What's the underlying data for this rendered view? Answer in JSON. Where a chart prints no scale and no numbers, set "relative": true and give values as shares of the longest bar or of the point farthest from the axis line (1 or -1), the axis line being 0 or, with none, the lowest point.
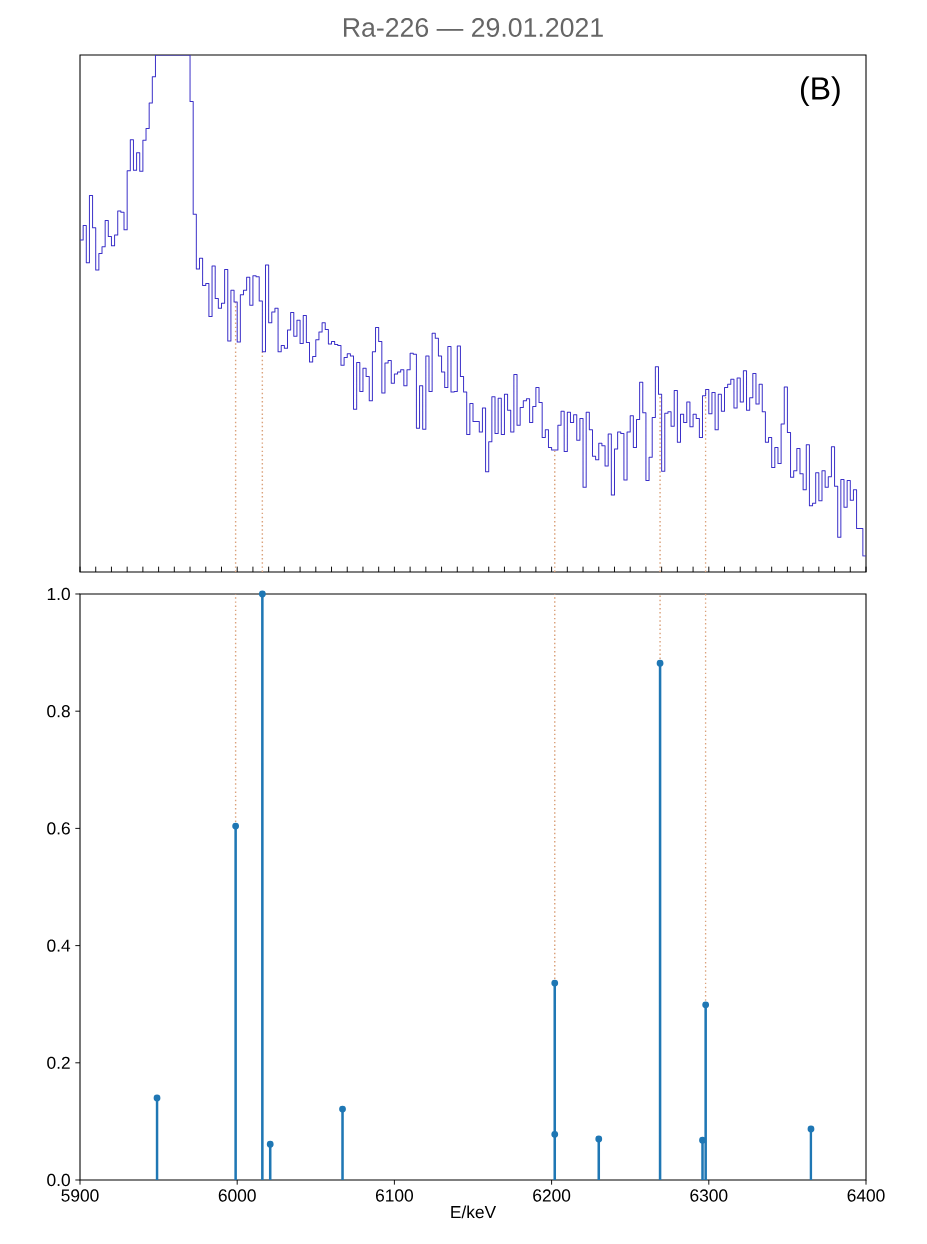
{
  "chart_data": [
    {
      "type": "step",
      "title": "Ra-226 — 29.01.2021",
      "annotations": [
        "(B)"
      ],
      "relative": true,
      "tick_labels": false,
      "color": "#3a2fc8",
      "xlim": [
        5900,
        6400
      ],
      "xticks": [
        5900,
        5910,
        5920,
        5930,
        5940,
        5950,
        5960,
        5970,
        5980,
        5990,
        6000,
        6010,
        6020,
        6030,
        6040,
        6050,
        6060,
        6070,
        6080,
        6090,
        6100,
        6110,
        6120,
        6130,
        6140,
        6150,
        6160,
        6170,
        6180,
        6190,
        6200,
        6210,
        6220,
        6230,
        6240,
        6250,
        6260,
        6270,
        6280,
        6290,
        6300,
        6310,
        6320,
        6330,
        6340,
        6350,
        6360,
        6370,
        6380,
        6390,
        6400
      ],
      "x": [
        5900,
        5902,
        5904,
        5906,
        5908,
        5910,
        5912,
        5914,
        5916,
        5918,
        5920,
        5922,
        5924,
        5926,
        5928,
        5930,
        5932,
        5934,
        5936,
        5938,
        5940,
        5942,
        5944,
        5946,
        5948,
        5970,
        5972,
        5974,
        5976,
        5978,
        5980,
        5982,
        5984,
        5986,
        5988,
        5990,
        5992,
        5994,
        5996,
        5998,
        6000,
        6002,
        6004,
        6006,
        6008,
        6010,
        6012,
        6014,
        6016,
        6018,
        6020,
        6022,
        6024,
        6026,
        6028,
        6030,
        6032,
        6034,
        6036,
        6038,
        6040,
        6042,
        6044,
        6046,
        6048,
        6050,
        6052,
        6054,
        6056,
        6058,
        6060,
        6062,
        6064,
        6066,
        6068,
        6070,
        6072,
        6074,
        6076,
        6078,
        6080,
        6082,
        6084,
        6086,
        6088,
        6090,
        6092,
        6094,
        6096,
        6098,
        6100,
        6102,
        6104,
        6106,
        6108,
        6110,
        6112,
        6114,
        6116,
        6118,
        6120,
        6122,
        6124,
        6126,
        6128,
        6130,
        6132,
        6134,
        6136,
        6138,
        6140,
        6142,
        6144,
        6146,
        6148,
        6150,
        6154,
        6156,
        6158,
        6160,
        6162,
        6164,
        6166,
        6168,
        6170,
        6172,
        6174,
        6176,
        6178,
        6180,
        6182,
        6184,
        6186,
        6188,
        6190,
        6192,
        6194,
        6196,
        6198,
        6200,
        6204,
        6206,
        6208,
        6210,
        6212,
        6214,
        6216,
        6218,
        6220,
        6222,
        6224,
        6226,
        6228,
        6230,
        6232,
        6234,
        6236,
        6238,
        6240,
        6242,
        6244,
        6246,
        6248,
        6250,
        6252,
        6254,
        6256,
        6258,
        6260,
        6262,
        6264,
        6266,
        6268,
        6270,
        6272,
        6274,
        6276,
        6278,
        6280,
        6282,
        6284,
        6286,
        6288,
        6290,
        6292,
        6294,
        6296,
        6298,
        6300,
        6302,
        6304,
        6306,
        6308,
        6310,
        6312,
        6314,
        6316,
        6318,
        6320,
        6322,
        6324,
        6326,
        6328,
        6330,
        6332,
        6334,
        6336,
        6338,
        6340,
        6342,
        6344,
        6346,
        6348,
        6350,
        6352,
        6354,
        6356,
        6358,
        6360,
        6362,
        6364,
        6366,
        6368,
        6370,
        6372,
        6374,
        6376,
        6378,
        6380,
        6382,
        6384,
        6386,
        6388,
        6390,
        6392,
        6394,
        6398
      ],
      "values": [
        0.642,
        0.67,
        0.598,
        0.728,
        0.666,
        0.584,
        0.616,
        0.629,
        0.68,
        0.649,
        0.631,
        0.652,
        0.698,
        0.696,
        0.662,
        0.776,
        0.836,
        0.777,
        0.811,
        0.775,
        0.835,
        0.858,
        0.907,
        0.958,
        1,
        0.91,
        0.692,
        0.586,
        0.607,
        0.554,
        0.558,
        0.494,
        0.592,
        0.529,
        0.51,
        0.52,
        0.585,
        0.447,
        0.545,
        0.522,
        0.445,
        0.536,
        0.545,
        0.57,
        0.516,
        0.573,
        0.571,
        0.524,
        0.426,
        0.594,
        0.482,
        0.503,
        0.51,
        0.426,
        0.438,
        0.433,
        0.468,
        0.502,
        0.456,
        0.487,
        0.442,
        0.496,
        0.444,
        0.406,
        0.417,
        0.449,
        0.464,
        0.482,
        0.469,
        0.441,
        0.446,
        0.44,
        0.438,
        0.4,
        0.415,
        0.422,
        0.418,
        0.315,
        0.405,
        0.349,
        0.394,
        0.378,
        0.331,
        0.426,
        0.473,
        0.446,
        0.346,
        0.404,
        0.409,
        0.365,
        0.383,
        0.387,
        0.391,
        0.36,
        0.391,
        0.423,
        0.421,
        0.278,
        0.36,
        0.276,
        0.418,
        0.349,
        0.462,
        0.452,
        0.418,
        0.387,
        0.357,
        0.436,
        0.348,
        0.349,
        0.437,
        0.378,
        0.348,
        0.266,
        0.326,
        0.291,
        0.271,
        0.317,
        0.194,
        0.252,
        0.339,
        0.268,
        0.336,
        0.266,
        0.344,
        0.313,
        0.271,
        0.382,
        0.284,
        0.318,
        0.331,
        0.335,
        0.289,
        0.32,
        0.357,
        0.328,
        0.26,
        0.275,
        0.241,
        0.236,
        0.284,
        0.311,
        0.233,
        0.309,
        0.289,
        0.304,
        0.255,
        0.297,
        0.164,
        0.309,
        0.275,
        0.224,
        0.217,
        0.249,
        0.244,
        0.205,
        0.267,
        0.149,
        0.238,
        0.271,
        0.268,
        0.178,
        0.271,
        0.302,
        0.241,
        0.295,
        0.367,
        0.308,
        0.177,
        0.222,
        0.299,
        0.397,
        0.344,
        0.195,
        0.307,
        0.31,
        0.282,
        0.351,
        0.251,
        0.305,
        0.289,
        0.329,
        0.281,
        0.305,
        0.297,
        0.26,
        0.341,
        0.353,
        0.306,
        0.347,
        0.275,
        0.344,
        0.311,
        0.357,
        0.363,
        0.373,
        0.317,
        0.375,
        0.329,
        0.389,
        0.313,
        0.337,
        0.384,
        0.325,
        0.363,
        0.31,
        0.251,
        0.26,
        0.202,
        0.241,
        0.21,
        0.286,
        0.358,
        0.27,
        0.183,
        0.196,
        0.239,
        0.19,
        0.159,
        0.246,
        0.128,
        0.133,
        0.192,
        0.138,
        0.196,
        0.164,
        0.184,
        0.242,
        0.166,
        0.067,
        0.179,
        0.125,
        0.177,
        0.139,
        0.159,
        0.084,
        0.031
      ],
      "ref_lines": [
        {
          "axis": "x",
          "value": 5999,
          "color": "#dba27c",
          "line_style": "dotted"
        },
        {
          "axis": "x",
          "value": 6016,
          "color": "#dba27c",
          "line_style": "dotted"
        },
        {
          "axis": "x",
          "value": 6202,
          "color": "#dba27c",
          "line_style": "dotted"
        },
        {
          "axis": "x",
          "value": 6269,
          "color": "#dba27c",
          "line_style": "dotted"
        },
        {
          "axis": "x",
          "value": 6298,
          "color": "#dba27c",
          "line_style": "dotted"
        }
      ]
    },
    {
      "type": "lollipop",
      "xlabel": "E/keV",
      "color": "#1f77b4",
      "marker": "circle",
      "xlim": [
        5900,
        6400
      ],
      "xticks": [
        5900,
        6000,
        6100,
        6200,
        6300,
        6400
      ],
      "ylim": [
        0,
        1
      ],
      "yticks": [
        {
          "value": 0,
          "label": "0.0"
        },
        {
          "value": 0.2,
          "label": "0.2"
        },
        {
          "value": 0.4,
          "label": "0.4"
        },
        {
          "value": 0.6,
          "label": "0.6"
        },
        {
          "value": 0.8,
          "label": "0.8"
        },
        {
          "value": 1,
          "label": "1.0"
        }
      ],
      "x": [
        5949,
        5999,
        6016,
        6021,
        6067,
        6202,
        6202,
        6230,
        6269,
        6296,
        6298,
        6365
      ],
      "values": [
        0.14,
        0.604,
        1.0,
        0.061,
        0.121,
        0.078,
        0.336,
        0.07,
        0.882,
        0.068,
        0.299,
        0.087
      ],
      "ref_lines": [
        {
          "axis": "x",
          "value": 5999,
          "color": "#dba27c",
          "line_style": "dotted"
        },
        {
          "axis": "x",
          "value": 6202,
          "color": "#dba27c",
          "line_style": "dotted"
        },
        {
          "axis": "x",
          "value": 6269,
          "color": "#dba27c",
          "line_style": "dotted"
        },
        {
          "axis": "x",
          "value": 6298,
          "color": "#dba27c",
          "line_style": "dotted"
        }
      ]
    }
  ]
}
